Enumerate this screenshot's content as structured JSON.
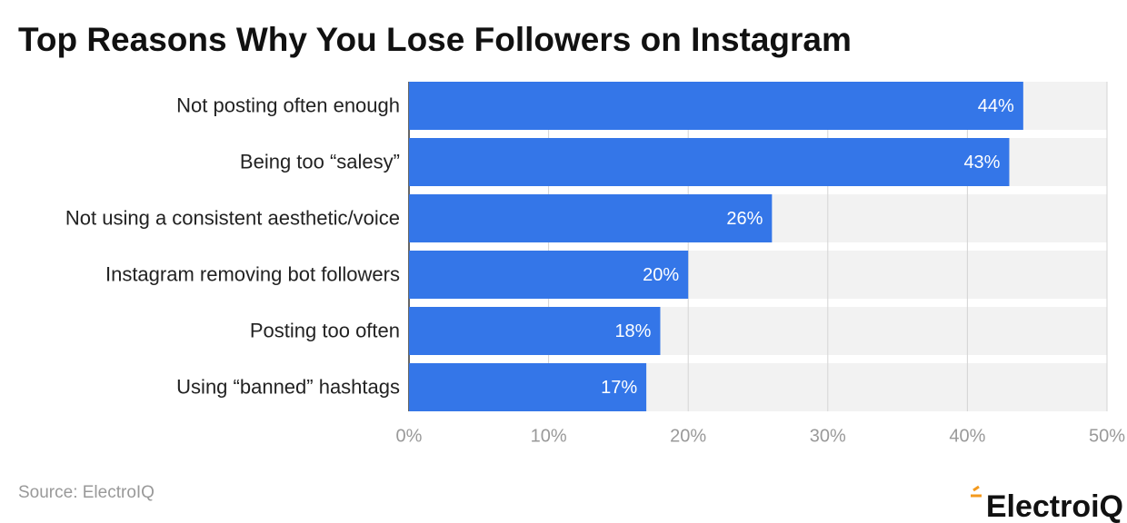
{
  "chart_data": {
    "type": "bar",
    "orientation": "horizontal",
    "title": "Top Reasons Why You Lose Followers on Instagram",
    "categories": [
      "Not posting often enough",
      "Being too “salesy”",
      "Not using a consistent aesthetic/voice",
      "Instagram removing bot followers",
      "Posting too often",
      "Using “banned” hashtags"
    ],
    "values": [
      44,
      43,
      26,
      20,
      18,
      17
    ],
    "value_labels": [
      "44%",
      "43%",
      "26%",
      "20%",
      "18%",
      "17%"
    ],
    "color": "#3476e8",
    "xlim": [
      0,
      50
    ],
    "xticks": [
      {
        "value": 0,
        "label": "0%"
      },
      {
        "value": 10,
        "label": "10%"
      },
      {
        "value": 20,
        "label": "20%"
      },
      {
        "value": 30,
        "label": "30%"
      },
      {
        "value": 40,
        "label": "40%"
      },
      {
        "value": 50,
        "label": "50%"
      }
    ],
    "grid": true,
    "source": "Source: ElectroIQ",
    "logo": "ElectroiQ"
  }
}
